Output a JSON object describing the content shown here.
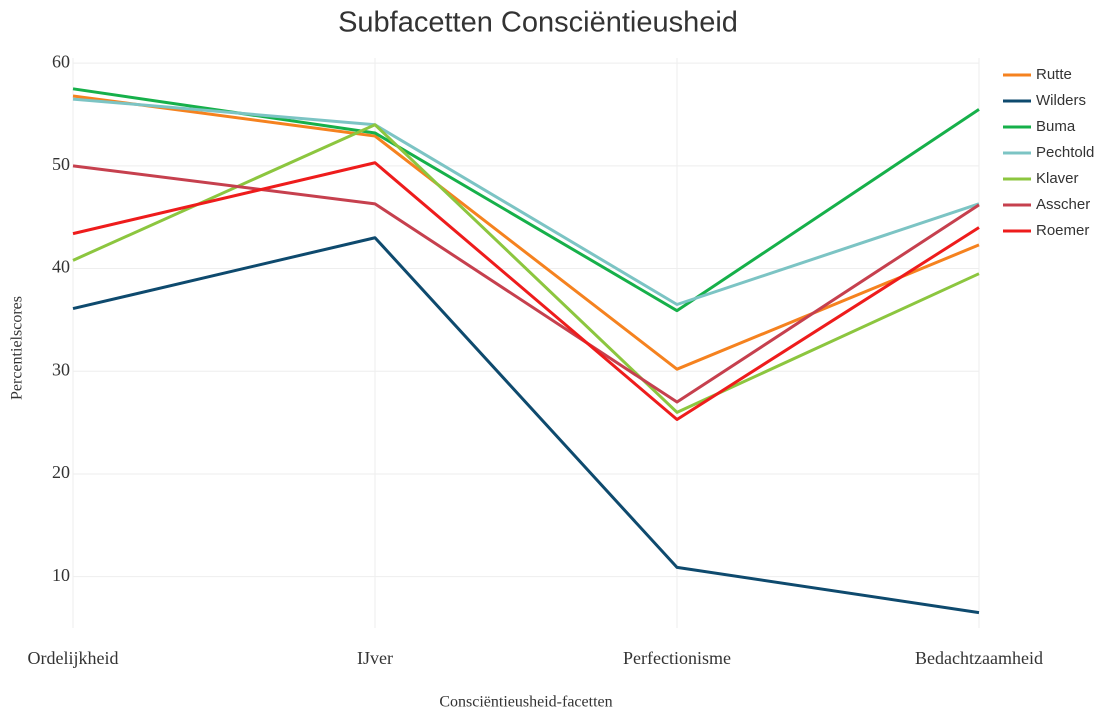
{
  "chart_data": {
    "type": "line",
    "title": "Subfacetten Consciëntieusheid",
    "x_label": "Consciëntieusheid-facetten",
    "y_label": "Percentielscores",
    "categories": [
      "Ordelijkheid",
      "IJver",
      "Perfectionisme",
      "Bedachtzaamheid"
    ],
    "series": [
      {
        "name": "Rutte",
        "color": "#f5821f",
        "values": [
          56.8,
          52.9,
          30.2,
          42.3
        ]
      },
      {
        "name": "Wilders",
        "color": "#0e4a6e",
        "values": [
          36.1,
          43.0,
          10.9,
          6.5
        ]
      },
      {
        "name": "Buma",
        "color": "#16b04a",
        "values": [
          57.5,
          53.2,
          35.9,
          55.5
        ]
      },
      {
        "name": "Pechtold",
        "color": "#7cc4c4",
        "values": [
          56.5,
          54.0,
          36.5,
          46.3
        ]
      },
      {
        "name": "Klaver",
        "color": "#8cc63f",
        "values": [
          40.8,
          54.0,
          26.0,
          39.5
        ]
      },
      {
        "name": "Asscher",
        "color": "#c6404e",
        "values": [
          50.0,
          46.3,
          27.0,
          46.2
        ]
      },
      {
        "name": "Roemer",
        "color": "#ee1c1c",
        "values": [
          43.4,
          50.3,
          25.3,
          44.0
        ]
      }
    ],
    "ylim": [
      5,
      60.5
    ],
    "yticks": [
      10,
      20,
      30,
      40,
      50,
      60
    ],
    "grid": true,
    "legend": "right"
  }
}
